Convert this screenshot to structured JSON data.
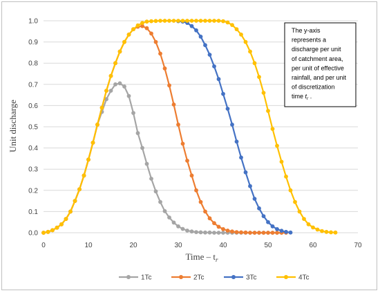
{
  "chart_data": {
    "type": "line",
    "xlabel": "Time – t",
    "xlabel_subscript": "r",
    "ylabel": "Unit discharge",
    "xlim": [
      0,
      70
    ],
    "ylim": [
      0,
      1.0
    ],
    "x_ticks": [
      "0",
      "10",
      "20",
      "30",
      "40",
      "50",
      "60",
      "70"
    ],
    "y_ticks": [
      "0.0",
      "0.1",
      "0.2",
      "0.3",
      "0.4",
      "0.5",
      "0.6",
      "0.7",
      "0.8",
      "0.9",
      "1.0"
    ],
    "grid": "horizontal",
    "legend_placement": "bottom",
    "annotation": {
      "lines": [
        "The y-axis",
        "represents a",
        "discharge per unit",
        "of catchment area,",
        "per unit of effective",
        "rainfall, and per unit",
        "of discretization"
      ],
      "last_line_prefix": "time ",
      "last_line_var": "t",
      "last_line_sub": "r",
      "last_line_suffix": "."
    },
    "series": [
      {
        "name": "1Tc",
        "color": "#a5a5a5",
        "x": [
          0,
          1,
          2,
          3,
          4,
          5,
          6,
          7,
          8,
          9,
          10,
          11,
          12,
          13,
          14,
          15,
          16,
          17,
          18,
          19,
          20,
          21,
          22,
          23,
          24,
          25,
          26,
          27,
          28,
          29,
          30,
          31,
          32,
          33,
          34,
          35,
          36,
          37,
          38,
          39,
          40,
          41,
          42,
          43,
          44,
          45,
          46,
          47,
          48,
          49,
          50,
          51,
          52,
          53
        ],
        "y": [
          0,
          0.004,
          0.012,
          0.024,
          0.04,
          0.065,
          0.1,
          0.15,
          0.205,
          0.27,
          0.345,
          0.425,
          0.51,
          0.57,
          0.63,
          0.67,
          0.7,
          0.705,
          0.69,
          0.645,
          0.565,
          0.47,
          0.4,
          0.325,
          0.255,
          0.195,
          0.145,
          0.102,
          0.072,
          0.048,
          0.03,
          0.018,
          0.01,
          0.006,
          0.003,
          0.002,
          0.001,
          0.001,
          0,
          0,
          0,
          0,
          0,
          0,
          0,
          0,
          0,
          0,
          0,
          0,
          0,
          0,
          0,
          0
        ]
      },
      {
        "name": "2Tc",
        "color": "#ed7d31",
        "x": [
          0,
          1,
          2,
          3,
          4,
          5,
          6,
          7,
          8,
          9,
          10,
          11,
          12,
          13,
          14,
          15,
          16,
          17,
          18,
          19,
          20,
          21,
          22,
          23,
          24,
          25,
          26,
          27,
          28,
          29,
          30,
          31,
          32,
          33,
          34,
          35,
          36,
          37,
          38,
          39,
          40,
          41,
          42,
          43,
          44,
          45,
          46,
          47,
          48,
          49,
          50,
          51,
          52,
          53,
          54
        ],
        "y": [
          0,
          0.004,
          0.012,
          0.024,
          0.04,
          0.065,
          0.1,
          0.15,
          0.205,
          0.27,
          0.345,
          0.425,
          0.51,
          0.59,
          0.67,
          0.74,
          0.8,
          0.855,
          0.9,
          0.935,
          0.96,
          0.972,
          0.975,
          0.965,
          0.94,
          0.9,
          0.845,
          0.775,
          0.695,
          0.605,
          0.51,
          0.42,
          0.34,
          0.27,
          0.2,
          0.145,
          0.1,
          0.068,
          0.045,
          0.028,
          0.017,
          0.01,
          0.006,
          0.003,
          0.002,
          0.001,
          0,
          0,
          0,
          0,
          0,
          0,
          0,
          0,
          0
        ]
      },
      {
        "name": "3Tc",
        "color": "#4472c4",
        "x": [
          30,
          31,
          32,
          33,
          34,
          35,
          36,
          37,
          38,
          39,
          40,
          41,
          42,
          43,
          44,
          45,
          46,
          47,
          48,
          49,
          50,
          51,
          52,
          53,
          54,
          55
        ],
        "y": [
          0.998,
          0.996,
          0.99,
          0.975,
          0.955,
          0.925,
          0.885,
          0.84,
          0.785,
          0.725,
          0.655,
          0.585,
          0.51,
          0.43,
          0.355,
          0.285,
          0.22,
          0.16,
          0.115,
          0.078,
          0.05,
          0.03,
          0.017,
          0.009,
          0.004,
          0.001
        ]
      },
      {
        "name": "4Tc",
        "color": "#ffc000",
        "x": [
          0,
          1,
          2,
          3,
          4,
          5,
          6,
          7,
          8,
          9,
          10,
          11,
          12,
          13,
          14,
          15,
          16,
          17,
          18,
          19,
          20,
          21,
          22,
          23,
          24,
          25,
          26,
          27,
          28,
          29,
          30,
          31,
          32,
          33,
          34,
          35,
          36,
          37,
          38,
          39,
          40,
          41,
          42,
          43,
          44,
          45,
          46,
          47,
          48,
          49,
          50,
          51,
          52,
          53,
          54,
          55,
          56,
          57,
          58,
          59,
          60,
          61,
          62,
          63,
          64,
          65
        ],
        "y": [
          0,
          0.004,
          0.012,
          0.024,
          0.04,
          0.065,
          0.1,
          0.15,
          0.205,
          0.27,
          0.345,
          0.425,
          0.51,
          0.59,
          0.67,
          0.74,
          0.8,
          0.855,
          0.9,
          0.935,
          0.96,
          0.978,
          0.99,
          0.996,
          0.998,
          0.999,
          1,
          1,
          1,
          1,
          1,
          1,
          1,
          1,
          1,
          1,
          1,
          1,
          1,
          1,
          0.998,
          0.992,
          0.98,
          0.96,
          0.935,
          0.9,
          0.855,
          0.8,
          0.735,
          0.66,
          0.575,
          0.49,
          0.41,
          0.335,
          0.265,
          0.2,
          0.145,
          0.1,
          0.065,
          0.04,
          0.025,
          0.015,
          0.008,
          0.004,
          0.002,
          0.001
        ]
      }
    ]
  }
}
